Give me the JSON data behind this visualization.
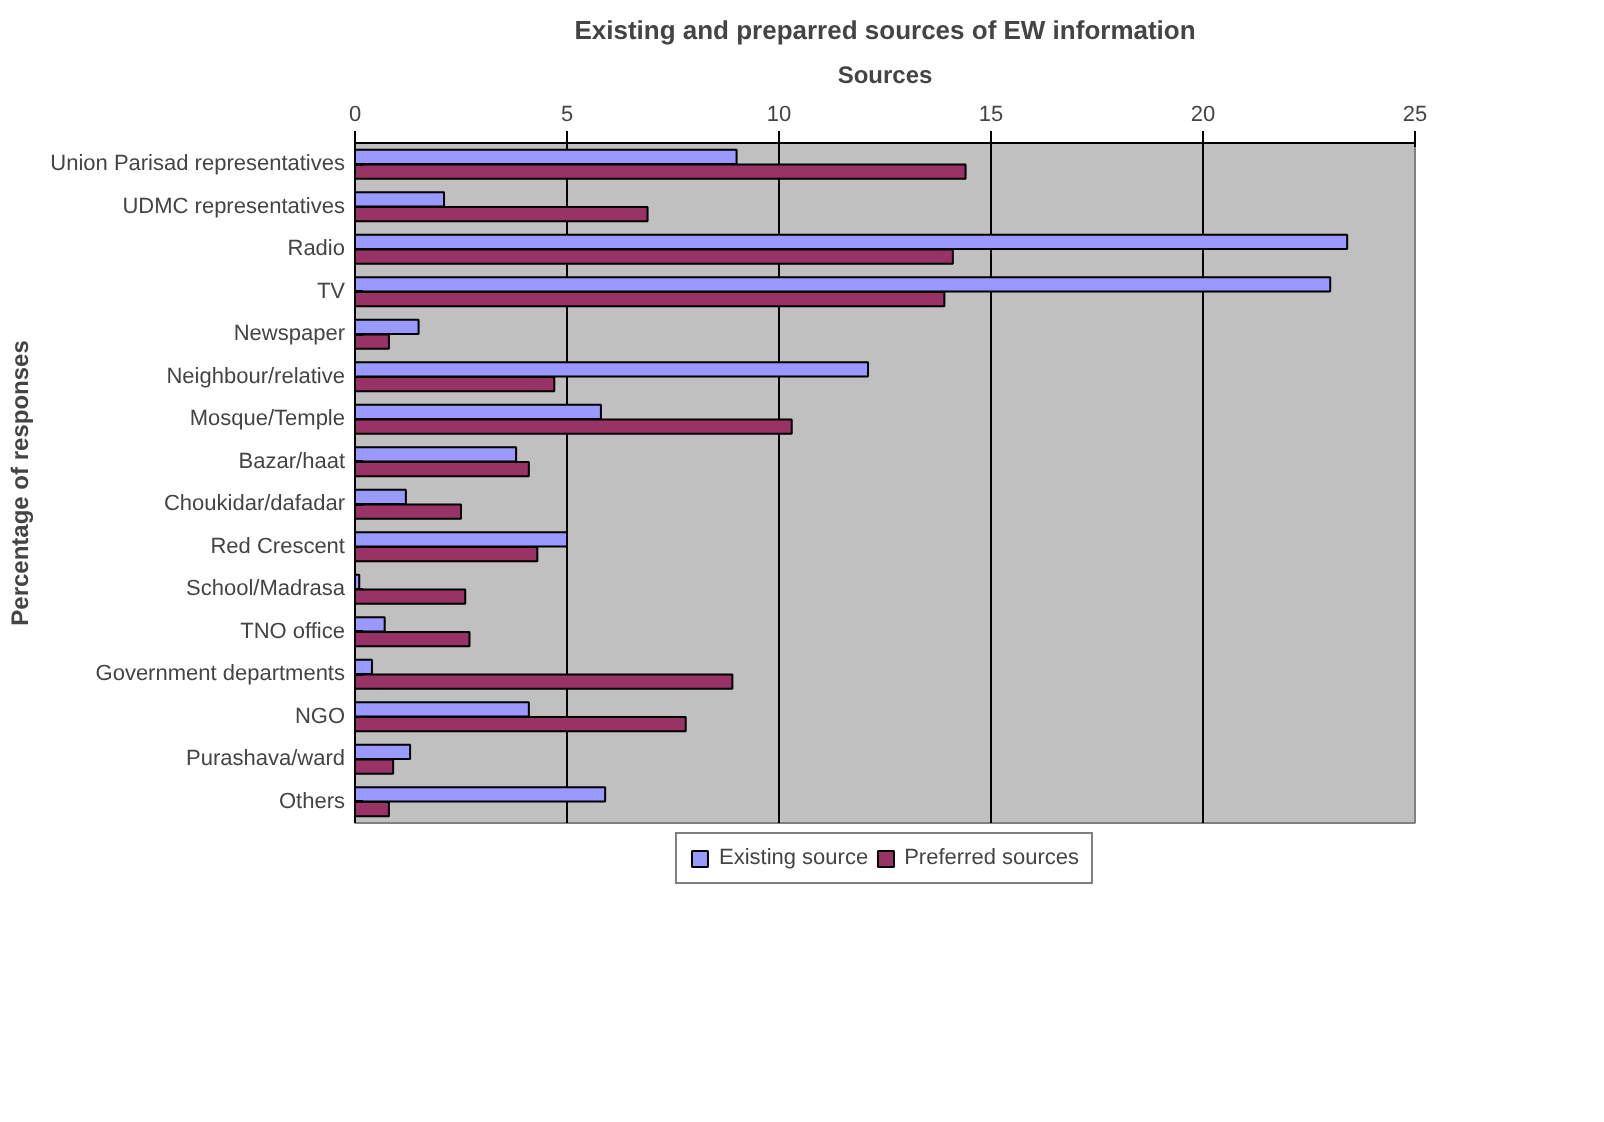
{
  "chart_data": {
    "type": "bar",
    "orientation": "horizontal",
    "title": "Existing and preparred sources of EW information",
    "xlabel": "Sources",
    "ylabel": "Percentage of responses",
    "categories": [
      "Union Parisad representatives",
      "UDMC representatives",
      "Radio",
      "TV",
      "Newspaper",
      "Neighbour/relative",
      "Mosque/Temple",
      "Bazar/haat",
      "Choukidar/dafadar",
      "Red Crescent",
      "School/Madrasa",
      "TNO office",
      "Government departments",
      "NGO",
      "Purashava/ward",
      "Others"
    ],
    "series": [
      {
        "name": "Existing source",
        "color": "#9999ff",
        "values": [
          9.0,
          2.1,
          23.4,
          23.0,
          1.5,
          12.1,
          5.8,
          3.8,
          1.2,
          5.0,
          0.1,
          0.7,
          0.4,
          4.1,
          1.3,
          5.9
        ]
      },
      {
        "name": "Preferred sources",
        "color": "#993366",
        "values": [
          14.4,
          6.9,
          14.1,
          13.9,
          0.8,
          4.7,
          10.3,
          4.1,
          2.5,
          4.3,
          2.6,
          2.7,
          8.9,
          7.8,
          0.9,
          0.8
        ]
      }
    ],
    "xlim": [
      0,
      25
    ],
    "xticks": [
      0,
      5,
      10,
      15,
      20,
      25
    ],
    "grid": "x",
    "legend": "bottom"
  }
}
